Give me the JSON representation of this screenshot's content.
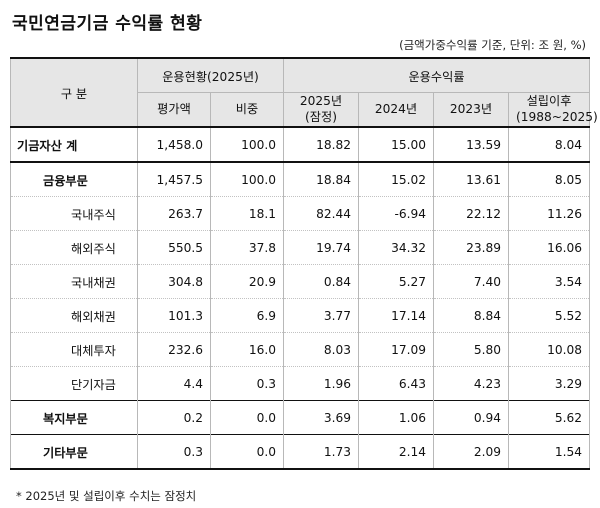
{
  "title": "국민연금기금 수익률 현황",
  "unit_note": "(금액가중수익률 기준, 단위: 조 원, %)",
  "header": {
    "category": "구 분",
    "group_status": "운용현황(2025년)",
    "group_returns": "운용수익률",
    "col_valuation": "평가액",
    "col_weight": "비중",
    "col_2025_line1": "2025년",
    "col_2025_line2": "(잠정)",
    "col_2024": "2024년",
    "col_2023": "2023년",
    "col_since_line1": "설립이후",
    "col_since_line2": "(1988~2025)"
  },
  "rows": [
    {
      "label": "기금자산 계",
      "valuation": "1,458.0",
      "weight": "100.0",
      "r2025": "18.82",
      "r2024": "15.00",
      "r2023": "13.59",
      "since": "8.04"
    },
    {
      "label": "금융부문",
      "valuation": "1,457.5",
      "weight": "100.0",
      "r2025": "18.84",
      "r2024": "15.02",
      "r2023": "13.61",
      "since": "8.05"
    },
    {
      "label": "국내주식",
      "valuation": "263.7",
      "weight": "18.1",
      "r2025": "82.44",
      "r2024": "-6.94",
      "r2023": "22.12",
      "since": "11.26"
    },
    {
      "label": "해외주식",
      "valuation": "550.5",
      "weight": "37.8",
      "r2025": "19.74",
      "r2024": "34.32",
      "r2023": "23.89",
      "since": "16.06"
    },
    {
      "label": "국내채권",
      "valuation": "304.8",
      "weight": "20.9",
      "r2025": "0.84",
      "r2024": "5.27",
      "r2023": "7.40",
      "since": "3.54"
    },
    {
      "label": "해외채권",
      "valuation": "101.3",
      "weight": "6.9",
      "r2025": "3.77",
      "r2024": "17.14",
      "r2023": "8.84",
      "since": "5.52"
    },
    {
      "label": "대체투자",
      "valuation": "232.6",
      "weight": "16.0",
      "r2025": "8.03",
      "r2024": "17.09",
      "r2023": "5.80",
      "since": "10.08"
    },
    {
      "label": "단기자금",
      "valuation": "4.4",
      "weight": "0.3",
      "r2025": "1.96",
      "r2024": "6.43",
      "r2023": "4.23",
      "since": "3.29"
    },
    {
      "label": "복지부문",
      "valuation": "0.2",
      "weight": "0.0",
      "r2025": "3.69",
      "r2024": "1.06",
      "r2023": "0.94",
      "since": "5.62"
    },
    {
      "label": "기타부문",
      "valuation": "0.3",
      "weight": "0.0",
      "r2025": "1.73",
      "r2024": "2.14",
      "r2023": "2.09",
      "since": "1.54"
    }
  ],
  "footnote": "* 2025년 및 설립이후 수치는 잠정치"
}
